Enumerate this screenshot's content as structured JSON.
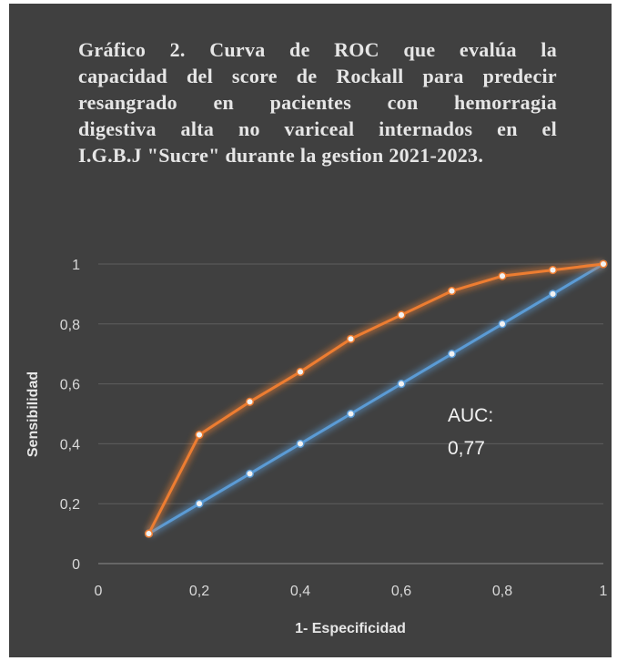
{
  "chart_data": {
    "type": "line",
    "title_lines": [
      "Gráfico 2. Curva de ROC que evalúa la",
      "capacidad del score de Rockall para predecir",
      "resangrado en pacientes con hemorragia",
      "digestiva alta no variceal internados en el",
      "I.G.B.J \"Sucre\" durante la gestion 2021-2023."
    ],
    "xlabel": "1- Especificidad",
    "ylabel": "Sensibilidad",
    "xlim": [
      0,
      1
    ],
    "ylim": [
      0,
      1
    ],
    "x_ticks": [
      "0",
      "0,2",
      "0,4",
      "0,6",
      "0,8",
      "1"
    ],
    "y_ticks": [
      "0",
      "0,2",
      "0,4",
      "0,6",
      "0,8",
      "1"
    ],
    "grid": true,
    "annotation_lines": [
      "AUC:",
      "0,77"
    ],
    "series": [
      {
        "color": "#ed7d31",
        "x": [
          0.1,
          0.2,
          0.3,
          0.4,
          0.5,
          0.6,
          0.7,
          0.8,
          0.9,
          1.0
        ],
        "y": [
          0.1,
          0.43,
          0.54,
          0.64,
          0.75,
          0.83,
          0.91,
          0.96,
          0.98,
          1.0
        ]
      },
      {
        "color": "#5b9bd5",
        "x": [
          0.1,
          0.2,
          0.3,
          0.4,
          0.5,
          0.6,
          0.7,
          0.8,
          0.9,
          1.0
        ],
        "y": [
          0.1,
          0.2,
          0.3,
          0.4,
          0.5,
          0.6,
          0.7,
          0.8,
          0.9,
          1.0
        ]
      }
    ]
  }
}
